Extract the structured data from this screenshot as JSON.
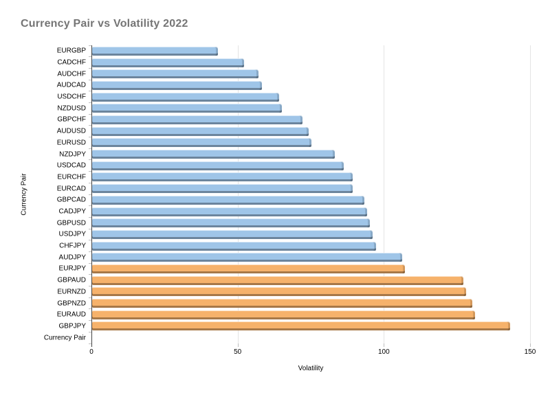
{
  "page": {
    "background": "#ffffff"
  },
  "chart_data": {
    "type": "bar",
    "orientation": "horizontal",
    "title": "Currency Pair vs Volatility 2022",
    "xlabel": "Volatility",
    "ylabel": "Currency Pair",
    "xlim": [
      0,
      150
    ],
    "xticks": [
      0,
      50,
      100,
      150
    ],
    "grid": true,
    "legend_position": "none",
    "categories": [
      "EURGBP",
      "CADCHF",
      "AUDCHF",
      "AUDCAD",
      "USDCHF",
      "NZDUSD",
      "GBPCHF",
      "AUDUSD",
      "EURUSD",
      "NZDJPY",
      "USDCAD",
      "EURCHF",
      "EURCAD",
      "GBPCAD",
      "CADJPY",
      "GBPUSD",
      "USDJPY",
      "CHFJPY",
      "AUDJPY",
      "EURJPY",
      "GBPAUD",
      "EURNZD",
      "GBPNZD",
      "EURAUD",
      "GBPJPY",
      "Currency Pair"
    ],
    "values": [
      43,
      52,
      57,
      58,
      64,
      65,
      72,
      74,
      75,
      83,
      86,
      89,
      89,
      93,
      94,
      95,
      96,
      97,
      106,
      107,
      127,
      128,
      130,
      131,
      143,
      0
    ],
    "bar_colors": [
      "#9fc5e8",
      "#9fc5e8",
      "#9fc5e8",
      "#9fc5e8",
      "#9fc5e8",
      "#9fc5e8",
      "#9fc5e8",
      "#9fc5e8",
      "#9fc5e8",
      "#9fc5e8",
      "#9fc5e8",
      "#9fc5e8",
      "#9fc5e8",
      "#9fc5e8",
      "#9fc5e8",
      "#9fc5e8",
      "#9fc5e8",
      "#9fc5e8",
      "#9fc5e8",
      "#f6b26b",
      "#f6b26b",
      "#f6b26b",
      "#f6b26b",
      "#f6b26b",
      "#f6b26b",
      "#9fc5e8"
    ],
    "palette": {
      "blue": "#9fc5e8",
      "orange": "#f6b26b"
    },
    "style": {
      "title_color": "#757575",
      "gridline_color": "#e4e4e4",
      "axis_line_color": "#424242",
      "tick_color": "#bdbdbd",
      "label_color": "#000000"
    }
  }
}
